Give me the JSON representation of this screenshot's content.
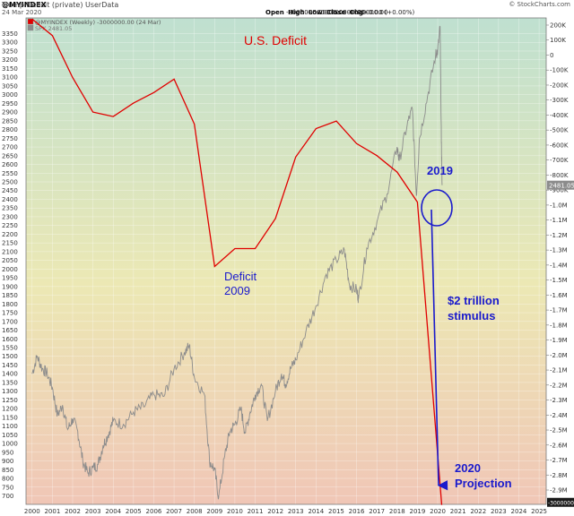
{
  "header": {
    "symbol": "@MYINDEX",
    "subtitle": "Trump Deficit (private) UserData",
    "date": "24 Mar 2020",
    "open_label": "Open",
    "open_value": "-3000000.00",
    "high_label": "High",
    "high_value": "-3000000.00",
    "low_label": "Low",
    "low_value": "-3000000.00",
    "close_label": "Close",
    "close_value": "-3000000.00",
    "chg_label": "Chg",
    "chg_value": "+0.00 (+0.00%)",
    "brand": "© StockCharts.com"
  },
  "legend": {
    "series1": "@MYINDEX (Weekly) -3000000.00 (24 Mar)",
    "series2": "SPX 2481.05"
  },
  "colors": {
    "deficit_line": "#e00000",
    "spx_line": "#8c8c8c",
    "annotation_red": "#e00000",
    "annotation_blue": "#1a1acc",
    "bg_top": "#bfe0d0",
    "bg_mid": "#ece8b4",
    "bg_bottom": "#f0c6b6",
    "spx_badge": "#8c8c8c",
    "deficit_badge": "#1a1a1a"
  },
  "annotations": {
    "title": "U.S. Deficit",
    "deficit_2009": "Deficit",
    "deficit_2009_year": "2009",
    "marker_2019": "2019",
    "stimulus_line1": "$2 trillion",
    "stimulus_line2": "stimulus",
    "projection_line1": "2020",
    "projection_line2": "Projection"
  },
  "chart_data": {
    "type": "line",
    "x_axis": {
      "ticks": [
        "2000",
        "2001",
        "2002",
        "2003",
        "2004",
        "2005",
        "2006",
        "2007",
        "2008",
        "2009",
        "2010",
        "2011",
        "2012",
        "2013",
        "2014",
        "2015",
        "2016",
        "2017",
        "2018",
        "2019",
        "2020",
        "2021",
        "2022",
        "2023",
        "2024",
        "2025"
      ],
      "range": [
        2000,
        2025
      ]
    },
    "left_axis": {
      "range": [
        650,
        3400
      ],
      "ticks": [
        700,
        750,
        800,
        850,
        900,
        950,
        1000,
        1050,
        1100,
        1150,
        1200,
        1250,
        1300,
        1350,
        1400,
        1450,
        1500,
        1550,
        1600,
        1650,
        1700,
        1750,
        1800,
        1850,
        1900,
        1950,
        2000,
        2050,
        2100,
        2150,
        2200,
        2250,
        2300,
        2350,
        2400,
        2450,
        2500,
        2550,
        2600,
        2650,
        2700,
        2750,
        2800,
        2850,
        2900,
        2950,
        3000,
        3050,
        3100,
        3150,
        3200,
        3250,
        3300,
        3350
      ]
    },
    "right_axis": {
      "range_millions": [
        -3000000,
        300000
      ],
      "ticks": [
        "200K",
        "100K",
        "0",
        "-100K",
        "-200K",
        "-300K",
        "-400K",
        "-500K",
        "-600K",
        "-700K",
        "-800K",
        "-900K",
        "-1.0M",
        "-1.1M",
        "-1.2M",
        "-1.3M",
        "-1.4M",
        "-1.5M",
        "-1.6M",
        "-1.7M",
        "-1.8M",
        "-1.9M",
        "-2.0M",
        "-2.1M",
        "-2.2M",
        "-2.3M",
        "-2.4M",
        "-2.5M",
        "-2.6M",
        "-2.7M",
        "-2.8M",
        "-2.9M"
      ],
      "tick_values": [
        200000,
        100000,
        0,
        -100000,
        -200000,
        -300000,
        -400000,
        -500000,
        -600000,
        -700000,
        -800000,
        -900000,
        -1000000,
        -1100000,
        -1200000,
        -1300000,
        -1400000,
        -1500000,
        -1600000,
        -1700000,
        -1800000,
        -1900000,
        -2000000,
        -2100000,
        -2200000,
        -2300000,
        -2400000,
        -2500000,
        -2600000,
        -2700000,
        -2800000,
        -2900000
      ]
    },
    "series": [
      {
        "name": "@MYINDEX (Weekly)",
        "axis": "right",
        "color": "#e00000",
        "points": [
          [
            2000.0,
            240000
          ],
          [
            2001.0,
            130000
          ],
          [
            2002.0,
            -150000
          ],
          [
            2003.0,
            -380000
          ],
          [
            2004.0,
            -410000
          ],
          [
            2005.0,
            -320000
          ],
          [
            2006.0,
            -250000
          ],
          [
            2007.0,
            -160000
          ],
          [
            2008.0,
            -460000
          ],
          [
            2009.0,
            -1410000
          ],
          [
            2010.0,
            -1290000
          ],
          [
            2011.0,
            -1290000
          ],
          [
            2012.0,
            -1090000
          ],
          [
            2013.0,
            -680000
          ],
          [
            2014.0,
            -490000
          ],
          [
            2015.0,
            -440000
          ],
          [
            2016.0,
            -590000
          ],
          [
            2017.0,
            -670000
          ],
          [
            2018.0,
            -780000
          ],
          [
            2019.0,
            -980000
          ],
          [
            2020.2,
            -3000000
          ]
        ]
      },
      {
        "name": "SPX",
        "axis": "left",
        "color": "#8c8c8c",
        "points": [
          [
            2000.0,
            1400
          ],
          [
            2000.25,
            1500
          ],
          [
            2000.5,
            1430
          ],
          [
            2000.75,
            1400
          ],
          [
            2001.0,
            1320
          ],
          [
            2001.25,
            1160
          ],
          [
            2001.5,
            1220
          ],
          [
            2001.75,
            1080
          ],
          [
            2002.0,
            1140
          ],
          [
            2002.25,
            1070
          ],
          [
            2002.5,
            900
          ],
          [
            2002.75,
            830
          ],
          [
            2003.0,
            860
          ],
          [
            2003.25,
            880
          ],
          [
            2003.5,
            990
          ],
          [
            2003.75,
            1050
          ],
          [
            2004.0,
            1130
          ],
          [
            2004.5,
            1110
          ],
          [
            2005.0,
            1180
          ],
          [
            2005.5,
            1210
          ],
          [
            2006.0,
            1280
          ],
          [
            2006.5,
            1270
          ],
          [
            2007.0,
            1430
          ],
          [
            2007.5,
            1520
          ],
          [
            2007.75,
            1560
          ],
          [
            2008.0,
            1380
          ],
          [
            2008.5,
            1280
          ],
          [
            2008.75,
            900
          ],
          [
            2009.0,
            850
          ],
          [
            2009.2,
            690
          ],
          [
            2009.5,
            930
          ],
          [
            2009.75,
            1070
          ],
          [
            2010.0,
            1110
          ],
          [
            2010.3,
            1200
          ],
          [
            2010.5,
            1060
          ],
          [
            2010.75,
            1180
          ],
          [
            2011.0,
            1280
          ],
          [
            2011.3,
            1340
          ],
          [
            2011.6,
            1130
          ],
          [
            2012.0,
            1300
          ],
          [
            2012.3,
            1400
          ],
          [
            2012.5,
            1340
          ],
          [
            2012.75,
            1430
          ],
          [
            2013.0,
            1480
          ],
          [
            2013.5,
            1640
          ],
          [
            2014.0,
            1790
          ],
          [
            2014.5,
            1970
          ],
          [
            2015.0,
            2050
          ],
          [
            2015.4,
            2110
          ],
          [
            2015.65,
            1910
          ],
          [
            2016.0,
            1880
          ],
          [
            2016.1,
            1830
          ],
          [
            2016.5,
            2120
          ],
          [
            2017.0,
            2270
          ],
          [
            2017.5,
            2430
          ],
          [
            2018.0,
            2700
          ],
          [
            2018.1,
            2620
          ],
          [
            2018.5,
            2830
          ],
          [
            2018.75,
            2920
          ],
          [
            2018.95,
            2420
          ],
          [
            2019.1,
            2750
          ],
          [
            2019.5,
            2990
          ],
          [
            2019.9,
            3230
          ],
          [
            2020.0,
            3250
          ],
          [
            2020.12,
            3390
          ],
          [
            2020.18,
            2720
          ],
          [
            2020.22,
            2481
          ]
        ]
      }
    ],
    "last_values": {
      "spx": "2481.05",
      "myindex": "-3000000"
    }
  }
}
